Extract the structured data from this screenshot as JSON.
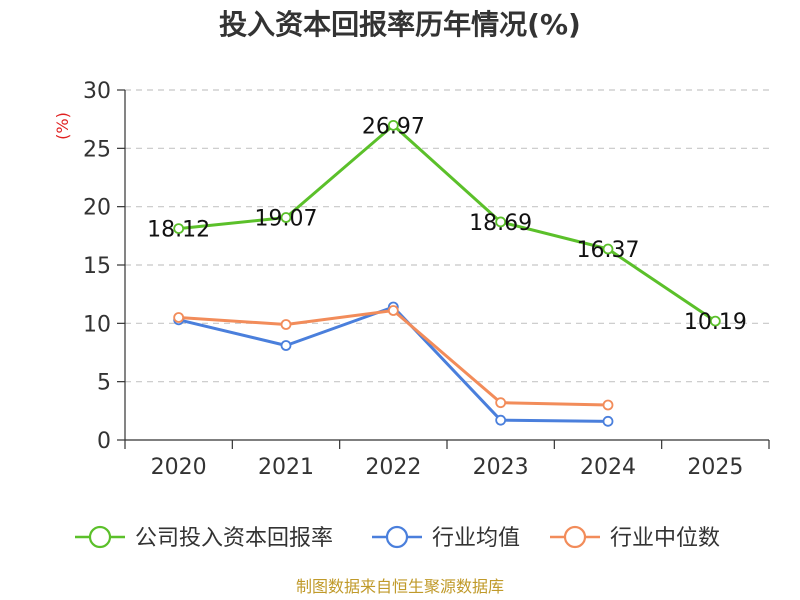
{
  "chart_data": {
    "type": "line",
    "title": "投入资本回报率历年情况(%)",
    "unit_label": "(%)",
    "xlabel": "",
    "ylabel": "(%)",
    "categories": [
      "2020",
      "2021",
      "2022",
      "2023",
      "2024",
      "2025"
    ],
    "ylim": [
      0,
      30
    ],
    "yticks": [
      0,
      5,
      10,
      15,
      20,
      25,
      30
    ],
    "grid": true,
    "legend_position": "bottom",
    "series": [
      {
        "name": "公司投入资本回报率",
        "color": "#5bc02a",
        "values": [
          18.12,
          19.07,
          26.97,
          18.69,
          16.37,
          10.19
        ],
        "labels": [
          "18.12",
          "19.07",
          "26.97",
          "18.69",
          "16.37",
          "10.19"
        ],
        "show_labels": true
      },
      {
        "name": "行业均值",
        "color": "#4a7fdc",
        "values": [
          10.3,
          8.1,
          11.4,
          1.7,
          1.6,
          null
        ],
        "show_labels": false
      },
      {
        "name": "行业中位数",
        "color": "#f28c5a",
        "values": [
          10.5,
          9.9,
          11.1,
          3.2,
          3.0,
          null
        ],
        "show_labels": false
      }
    ]
  },
  "source": "制图数据来自恒生聚源数据库"
}
